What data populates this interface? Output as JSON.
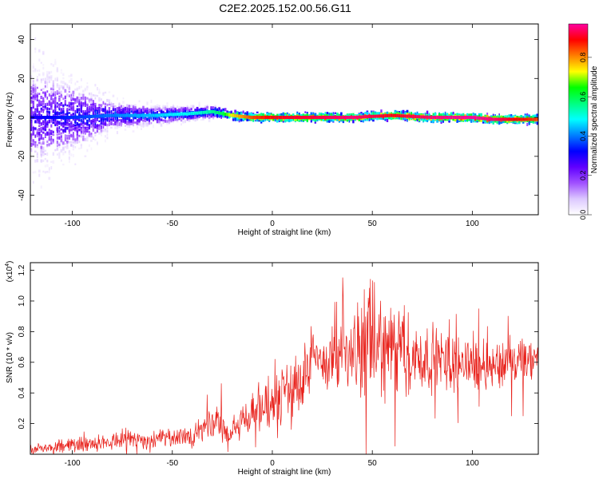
{
  "title": "C2E2.2025.152.00.56.G11",
  "chart_data": [
    {
      "type": "heatmap",
      "xlabel": "Height of straight line (km)",
      "ylabel": "Frequency (Hz)",
      "xlim": [
        -121,
        133
      ],
      "ylim": [
        -50,
        48
      ],
      "xticks": [
        "-100",
        "-50",
        "0",
        "50",
        "100"
      ],
      "xtick_values": [
        -100,
        -50,
        0,
        50,
        100
      ],
      "yticks": [
        "40",
        "20",
        "0",
        "-20",
        "-40"
      ],
      "ytick_values": [
        40,
        20,
        0,
        -20,
        -40
      ],
      "colorbar": {
        "label": "Normalized spectral amplitude",
        "range": [
          0.0,
          0.97
        ],
        "ticks": [
          "0.0",
          "0.2",
          "0.4",
          "0.6",
          "0.8"
        ],
        "tick_values": [
          0.0,
          0.2,
          0.4,
          0.6,
          0.8
        ],
        "colors": [
          "#ffffff",
          "#dcc8ff",
          "#a050ff",
          "#6000ff",
          "#0000ff",
          "#0080ff",
          "#00ffff",
          "#00ff80",
          "#00ff00",
          "#ffff00",
          "#ff8000",
          "#ff0000",
          "#ff00a0"
        ]
      },
      "ridge": {
        "x": [
          -120,
          -100,
          -80,
          -60,
          -40,
          -30,
          -25,
          -20,
          -10,
          0,
          20,
          40,
          60,
          80,
          100,
          110,
          120,
          133
        ],
        "center_hz": [
          0,
          0,
          1,
          1,
          2,
          3,
          2,
          1,
          0,
          0,
          0,
          0,
          1,
          0,
          0,
          -1,
          -1,
          -1
        ],
        "amplitude": [
          0.3,
          0.35,
          0.4,
          0.45,
          0.5,
          0.55,
          0.6,
          0.75,
          0.85,
          0.9,
          0.92,
          0.95,
          0.9,
          0.95,
          0.97,
          0.95,
          0.9,
          0.85
        ],
        "spread_hz": [
          45,
          30,
          12,
          8,
          6,
          5,
          4,
          3,
          3,
          3,
          3,
          3,
          3,
          3,
          3,
          3,
          3,
          3
        ]
      }
    },
    {
      "type": "line",
      "xlabel": "Height of straight line (km)",
      "ylabel": "SNR (10 * v/v)",
      "scale_label": "(x10",
      "scale_exp": "4",
      "scale_close": ")",
      "xlim": [
        -121,
        133
      ],
      "ylim": [
        0,
        1.25
      ],
      "xticks": [
        "-100",
        "-50",
        "0",
        "50",
        "100"
      ],
      "xtick_values": [
        -100,
        -50,
        0,
        50,
        100
      ],
      "yticks": [
        "0.2",
        "0.4",
        "0.6",
        "0.8",
        "1.0",
        "1.2"
      ],
      "ytick_values": [
        0.2,
        0.4,
        0.6,
        0.8,
        1.0,
        1.2
      ],
      "color": "#e8201a",
      "series": [
        {
          "x": [
            -121,
            -110,
            -100,
            -90,
            -80,
            -75,
            -70,
            -60,
            -50,
            -40,
            -35,
            -30,
            -26,
            -22,
            -20,
            -15,
            -10,
            -5,
            0,
            5,
            10,
            15,
            20,
            30,
            40,
            45,
            50,
            55,
            60,
            65,
            70,
            80,
            90,
            100,
            110,
            120,
            133
          ],
          "values": [
            0.02,
            0.04,
            0.06,
            0.07,
            0.09,
            0.11,
            0.1,
            0.09,
            0.1,
            0.13,
            0.15,
            0.18,
            0.2,
            0.12,
            0.15,
            0.22,
            0.28,
            0.3,
            0.32,
            0.36,
            0.42,
            0.5,
            0.6,
            0.62,
            0.65,
            0.7,
            0.72,
            0.7,
            0.68,
            0.66,
            0.63,
            0.62,
            0.6,
            0.6,
            0.58,
            0.6,
            0.6
          ],
          "noise": [
            0.03,
            0.04,
            0.05,
            0.05,
            0.06,
            0.08,
            0.07,
            0.06,
            0.07,
            0.08,
            0.1,
            0.12,
            0.12,
            0.08,
            0.1,
            0.12,
            0.15,
            0.18,
            0.2,
            0.22,
            0.25,
            0.28,
            0.22,
            0.22,
            0.25,
            0.35,
            0.38,
            0.35,
            0.32,
            0.3,
            0.26,
            0.22,
            0.2,
            0.18,
            0.17,
            0.17,
            0.17
          ]
        }
      ]
    }
  ]
}
